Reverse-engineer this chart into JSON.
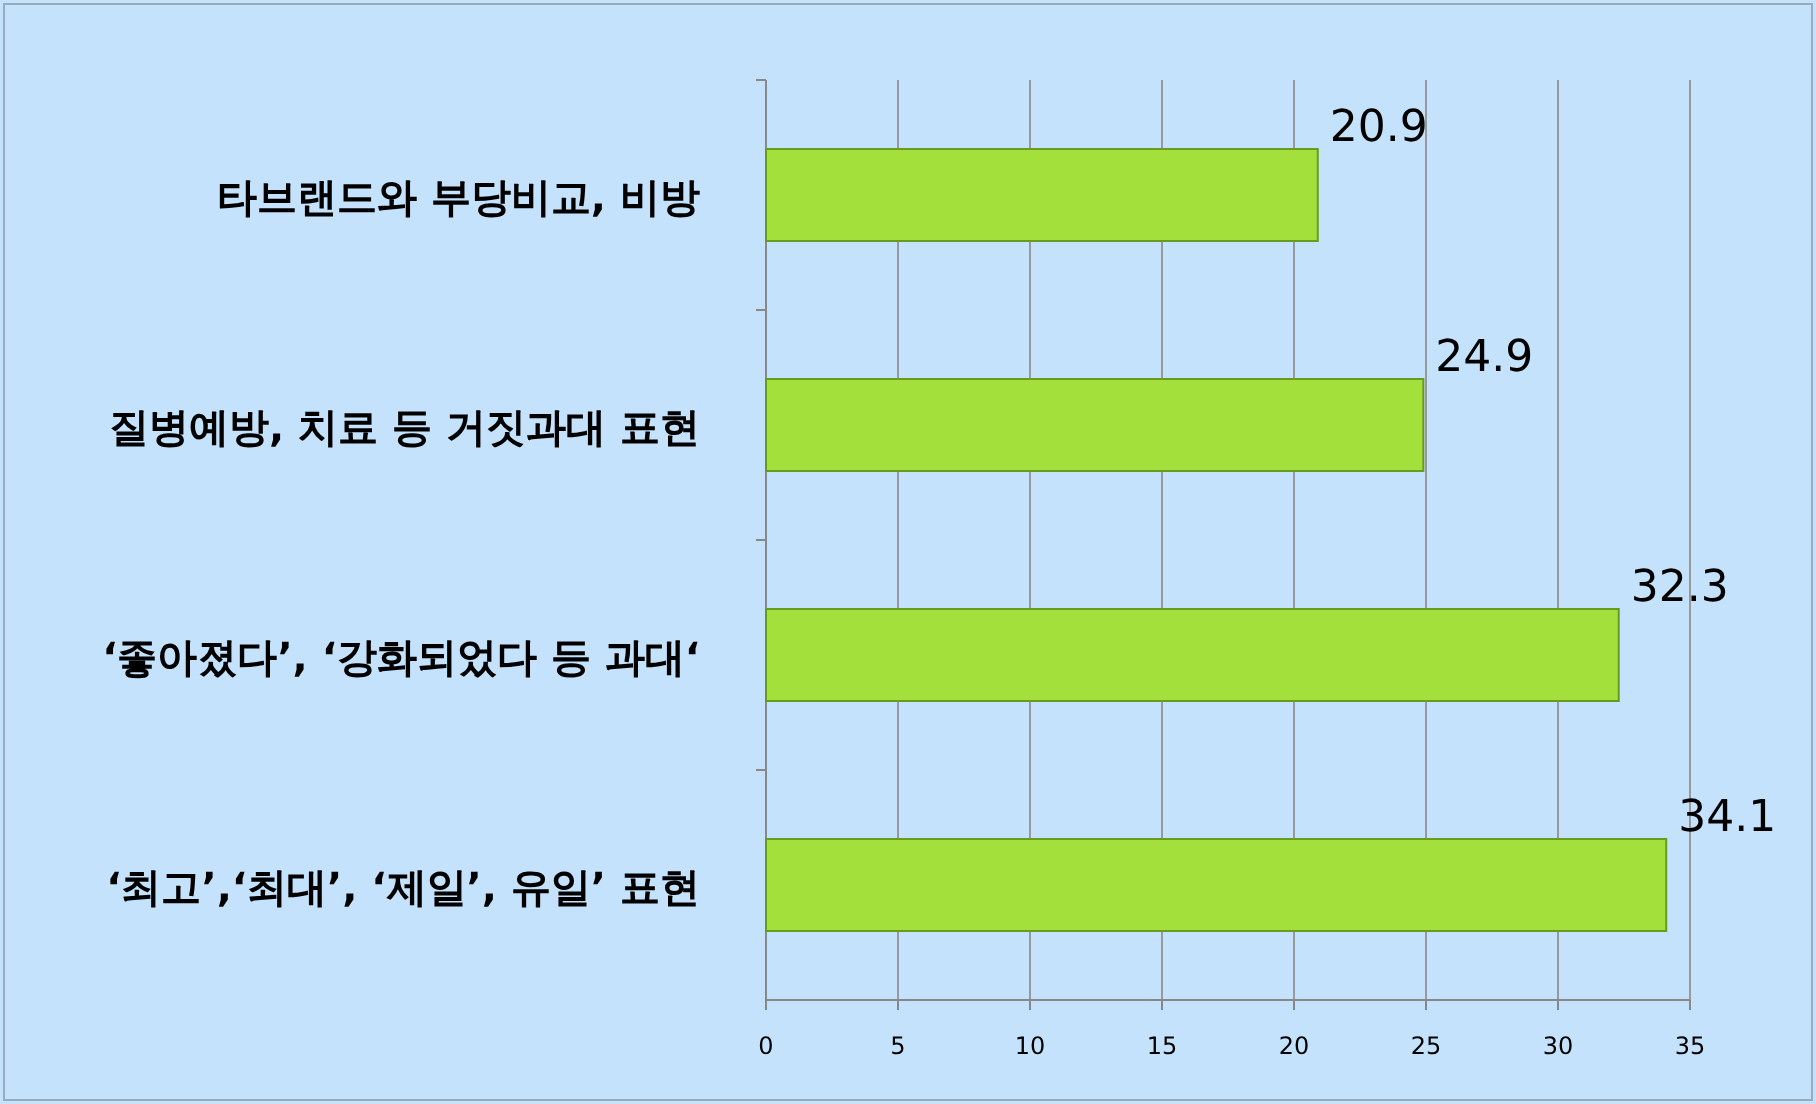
{
  "chart_data": {
    "type": "bar",
    "orientation": "horizontal",
    "categories": [
      "타브랜드와 부당비교, 비방",
      "질병예방, 치료 등 거짓과대 표현",
      "‘좋아졌다’, ‘강화되었다 등 과대‘",
      "‘최고’,‘최대’, ‘제일’, 유일’ 표현"
    ],
    "values": [
      20.9,
      24.9,
      32.3,
      34.1
    ],
    "color": "#a4e03c",
    "xlim": [
      0,
      35
    ],
    "xticks": [
      0,
      5,
      10,
      15,
      20,
      25,
      30,
      35
    ],
    "grid": "x",
    "data_labels": true
  }
}
